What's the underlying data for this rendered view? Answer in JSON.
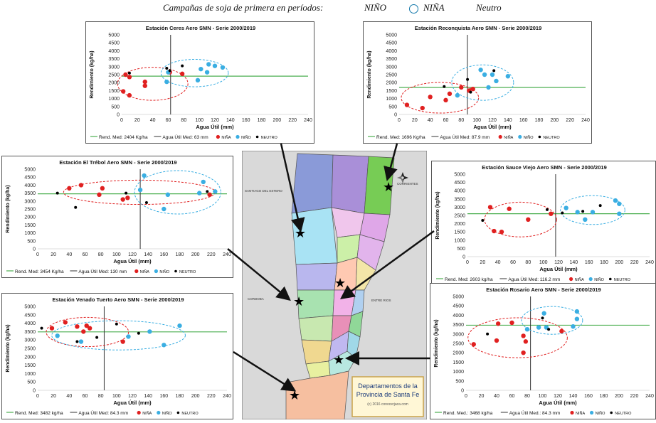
{
  "legend": {
    "title": "Campañas de soja de primera en períodos:",
    "items": [
      {
        "label": "NIÑO",
        "color": "#3aaee2"
      },
      {
        "label": "NIÑA",
        "color": "#e02020"
      },
      {
        "label": "Neutro",
        "color": "#000000"
      }
    ]
  },
  "colors": {
    "nina": "#e02020",
    "nino": "#3aaee2",
    "neutro": "#000000",
    "mean_line": "#4caf50",
    "water_line": "#333333"
  },
  "map": {
    "title": "Departamentos de la Provincia de Santa Fe",
    "credit": "(c) 2016 conocerjaca.com",
    "neighbors": [
      "SANTIAGO DEL ESTERO",
      "CORRIENTES",
      "CORDOBA",
      "ENTRE RIOS"
    ]
  },
  "chart_data": [
    {
      "type": "scatter",
      "title": "Estación Ceres Aero SMN - Serie 2000/2019",
      "xlabel": "Agua Útil (mm)",
      "ylabel": "Rendimiento (kg/ha)",
      "xlim": [
        0,
        240
      ],
      "ylim": [
        0,
        5000
      ],
      "xticks": [
        0,
        20,
        40,
        60,
        80,
        100,
        120,
        140,
        160,
        180,
        200,
        220,
        240
      ],
      "yticks": [
        0,
        500,
        1000,
        1500,
        2000,
        2500,
        3000,
        3500,
        4000,
        4500,
        5000
      ],
      "mean_yield": 2404,
      "mean_water": 63,
      "legend": [
        "Rend. Med: 2404 Kg/ha",
        "Agua Útil Med: 63 mm",
        "NIÑA",
        "NIÑO",
        "NEUTRO"
      ],
      "series": [
        {
          "name": "NIÑA",
          "points": [
            [
              2,
              1450
            ],
            [
              5,
              2500
            ],
            [
              10,
              1200
            ],
            [
              10,
              2350
            ],
            [
              30,
              1800
            ],
            [
              30,
              2050
            ],
            [
              62,
              2650
            ],
            [
              78,
              2550
            ]
          ]
        },
        {
          "name": "NIÑO",
          "points": [
            [
              58,
              2050
            ],
            [
              60,
              2650
            ],
            [
              98,
              2150
            ],
            [
              102,
              2850
            ],
            [
              110,
              2650
            ],
            [
              112,
              3150
            ],
            [
              120,
              3050
            ],
            [
              130,
              2950
            ]
          ]
        },
        {
          "name": "NEUTRO",
          "points": [
            [
              10,
              2600
            ],
            [
              58,
              2900
            ],
            [
              62,
              2750
            ],
            [
              78,
              3050
            ]
          ]
        }
      ]
    },
    {
      "type": "scatter",
      "title": "Estación Reconquista Aero SMN - Serie 2000/2019",
      "xlabel": "Agua Útil (mm)",
      "ylabel": "Rendimiento (kg/ha)",
      "xlim": [
        0,
        240
      ],
      "ylim": [
        0,
        5000
      ],
      "xticks": [
        0,
        20,
        40,
        60,
        80,
        100,
        120,
        140,
        160,
        180,
        200,
        220,
        240
      ],
      "yticks": [
        0,
        500,
        1000,
        1500,
        2000,
        2500,
        3000,
        3500,
        4000,
        4500,
        5000
      ],
      "mean_yield": 1696,
      "mean_water": 87.9,
      "legend": [
        "Rend. Med: 1696 Kg/ha",
        "Agua Útil Med: 87.9 mm",
        "NIÑA",
        "NIÑO",
        "NEUTRO"
      ],
      "series": [
        {
          "name": "NIÑA",
          "points": [
            [
              10,
              600
            ],
            [
              30,
              400
            ],
            [
              40,
              1100
            ],
            [
              60,
              900
            ],
            [
              65,
              1300
            ],
            [
              80,
              1700
            ],
            [
              90,
              1500
            ],
            [
              95,
              1600
            ]
          ]
        },
        {
          "name": "NIÑO",
          "points": [
            [
              75,
              1200
            ],
            [
              105,
              2800
            ],
            [
              110,
              2500
            ],
            [
              115,
              1700
            ],
            [
              120,
              2500
            ],
            [
              125,
              2100
            ],
            [
              140,
              2400
            ]
          ]
        },
        {
          "name": "NEUTRO",
          "points": [
            [
              58,
              1750
            ],
            [
              88,
              2200
            ],
            [
              92,
              1400
            ],
            [
              122,
              2750
            ]
          ]
        }
      ]
    },
    {
      "type": "scatter",
      "title": "Estación El Trébol Aero SMN - Serie 2000/2019",
      "xlabel": "Agua Útil (mm)",
      "ylabel": "Rendimiento (kg/ha)",
      "xlim": [
        0,
        240
      ],
      "ylim": [
        0,
        5000
      ],
      "xticks": [
        0,
        20,
        40,
        60,
        80,
        100,
        120,
        140,
        160,
        180,
        200,
        220,
        240
      ],
      "yticks": [
        0,
        500,
        1000,
        1500,
        2000,
        2500,
        3000,
        3500,
        4000,
        4500,
        5000
      ],
      "mean_yield": 3454,
      "mean_water": 130,
      "legend": [
        "Rend. Med: 3454 Kg/ha",
        "Agua Útil Med: 130 mm",
        "NIÑA",
        "NIÑO",
        "NEUTRO"
      ],
      "series": [
        {
          "name": "NIÑA",
          "points": [
            [
              40,
              3800
            ],
            [
              55,
              4000
            ],
            [
              78,
              3400
            ],
            [
              82,
              3800
            ],
            [
              108,
              3100
            ],
            [
              114,
              3200
            ],
            [
              218,
              3400
            ]
          ]
        },
        {
          "name": "NIÑO",
          "points": [
            [
              130,
              3700
            ],
            [
              135,
              4600
            ],
            [
              160,
              2500
            ],
            [
              165,
              3400
            ],
            [
              205,
              3500
            ],
            [
              210,
              4200
            ],
            [
              225,
              3600
            ]
          ]
        },
        {
          "name": "NEUTRO",
          "points": [
            [
              25,
              3500
            ],
            [
              48,
              2600
            ],
            [
              112,
              3500
            ],
            [
              138,
              2900
            ],
            [
              215,
              3600
            ]
          ]
        }
      ]
    },
    {
      "type": "scatter",
      "title": "Estación Sauce Viejo Aero SMN - Serie 2000/2019",
      "xlabel": "Agua Útil (mm)",
      "ylabel": "Rendimiento (kg/ha)",
      "xlim": [
        0,
        240
      ],
      "ylim": [
        0,
        5000
      ],
      "xticks": [
        0,
        20,
        40,
        60,
        80,
        100,
        120,
        140,
        160,
        180,
        200,
        220,
        240
      ],
      "yticks": [
        0,
        500,
        1000,
        1500,
        2000,
        2500,
        3000,
        3500,
        4000,
        4500,
        5000
      ],
      "mean_yield": 2603,
      "mean_water": 116.2,
      "legend": [
        "Rend. Med: 2603 kg/ha",
        "Agua Útil Med: 116.2 mm",
        "NIÑA",
        "NIÑO",
        "NEUTRO"
      ],
      "series": [
        {
          "name": "NIÑA",
          "points": [
            [
              30,
              3000
            ],
            [
              35,
              1550
            ],
            [
              45,
              1500
            ],
            [
              55,
              2900
            ],
            [
              80,
              2250
            ],
            [
              110,
              2600
            ]
          ]
        },
        {
          "name": "NIÑO",
          "points": [
            [
              130,
              2950
            ],
            [
              145,
              2700
            ],
            [
              155,
              2250
            ],
            [
              165,
              2700
            ],
            [
              195,
              3400
            ],
            [
              200,
              3200
            ],
            [
              200,
              2600
            ]
          ]
        },
        {
          "name": "NEUTRO",
          "points": [
            [
              20,
              2200
            ],
            [
              105,
              2850
            ],
            [
              125,
              2650
            ],
            [
              152,
              2750
            ],
            [
              175,
              3100
            ]
          ]
        }
      ]
    },
    {
      "type": "scatter",
      "title": "Estación Venado Tuerto Aero SMN - Serie 2000/2019",
      "xlabel": "Agua Útil (mm)",
      "ylabel": "Rendimiento (kg/ha)",
      "xlim": [
        0,
        240
      ],
      "ylim": [
        0,
        5000
      ],
      "xticks": [
        0,
        20,
        40,
        60,
        80,
        100,
        120,
        140,
        160,
        180,
        200,
        220,
        240
      ],
      "yticks": [
        0,
        500,
        1000,
        1500,
        2000,
        2500,
        3000,
        3500,
        4000,
        4500,
        5000
      ],
      "mean_yield": 3482,
      "mean_water": 84.3,
      "legend": [
        "Rend. Med: 3482 kg/ha",
        "Agua Útil Med: 84.3 mm",
        "NIÑA",
        "NIÑO",
        "NEUTRO"
      ],
      "series": [
        {
          "name": "NIÑA",
          "points": [
            [
              18,
              3700
            ],
            [
              35,
              4050
            ],
            [
              50,
              3800
            ],
            [
              58,
              3500
            ],
            [
              62,
              3850
            ],
            [
              66,
              3700
            ],
            [
              108,
              2900
            ]
          ]
        },
        {
          "name": "NIÑO",
          "points": [
            [
              25,
              3250
            ],
            [
              55,
              2900
            ],
            [
              115,
              3200
            ],
            [
              142,
              3500
            ],
            [
              160,
              2700
            ],
            [
              180,
              3850
            ]
          ]
        },
        {
          "name": "NEUTRO",
          "points": [
            [
              5,
              3700
            ],
            [
              50,
              2900
            ],
            [
              75,
              3150
            ],
            [
              100,
              3950
            ],
            [
              128,
              3400
            ]
          ]
        }
      ]
    },
    {
      "type": "scatter",
      "title": "Estación Rosario Aero SMN - Serie 2000/2019",
      "xlabel": "Agua Útil (mm)",
      "ylabel": "Rendimiento (kg/ha)",
      "xlim": [
        0,
        240
      ],
      "ylim": [
        0,
        5000
      ],
      "xticks": [
        0,
        20,
        40,
        60,
        80,
        100,
        120,
        140,
        160,
        180,
        200,
        220,
        240
      ],
      "yticks": [
        0,
        500,
        1000,
        1500,
        2000,
        2500,
        3000,
        3500,
        4000,
        4500,
        5000
      ],
      "mean_yield": 3468,
      "mean_water": 84.3,
      "legend": [
        "Rend. Med.: 3468 kg/ha",
        "Agua Útil Med.: 84.3 mm",
        "NIÑA",
        "NIÑO",
        "NEUTRO"
      ],
      "series": [
        {
          "name": "NIÑA",
          "points": [
            [
              10,
              2450
            ],
            [
              40,
              2650
            ],
            [
              42,
              3550
            ],
            [
              60,
              3600
            ],
            [
              75,
              2900
            ],
            [
              78,
              2600
            ],
            [
              75,
              2000
            ],
            [
              125,
              3150
            ]
          ]
        },
        {
          "name": "NIÑO",
          "points": [
            [
              80,
              3250
            ],
            [
              95,
              3350
            ],
            [
              102,
              4100
            ],
            [
              105,
              3350
            ],
            [
              140,
              3400
            ],
            [
              145,
              3800
            ],
            [
              145,
              4200
            ]
          ]
        },
        {
          "name": "NEUTRO",
          "points": [
            [
              28,
              3000
            ],
            [
              100,
              3850
            ],
            [
              108,
              3250
            ]
          ]
        }
      ]
    }
  ]
}
